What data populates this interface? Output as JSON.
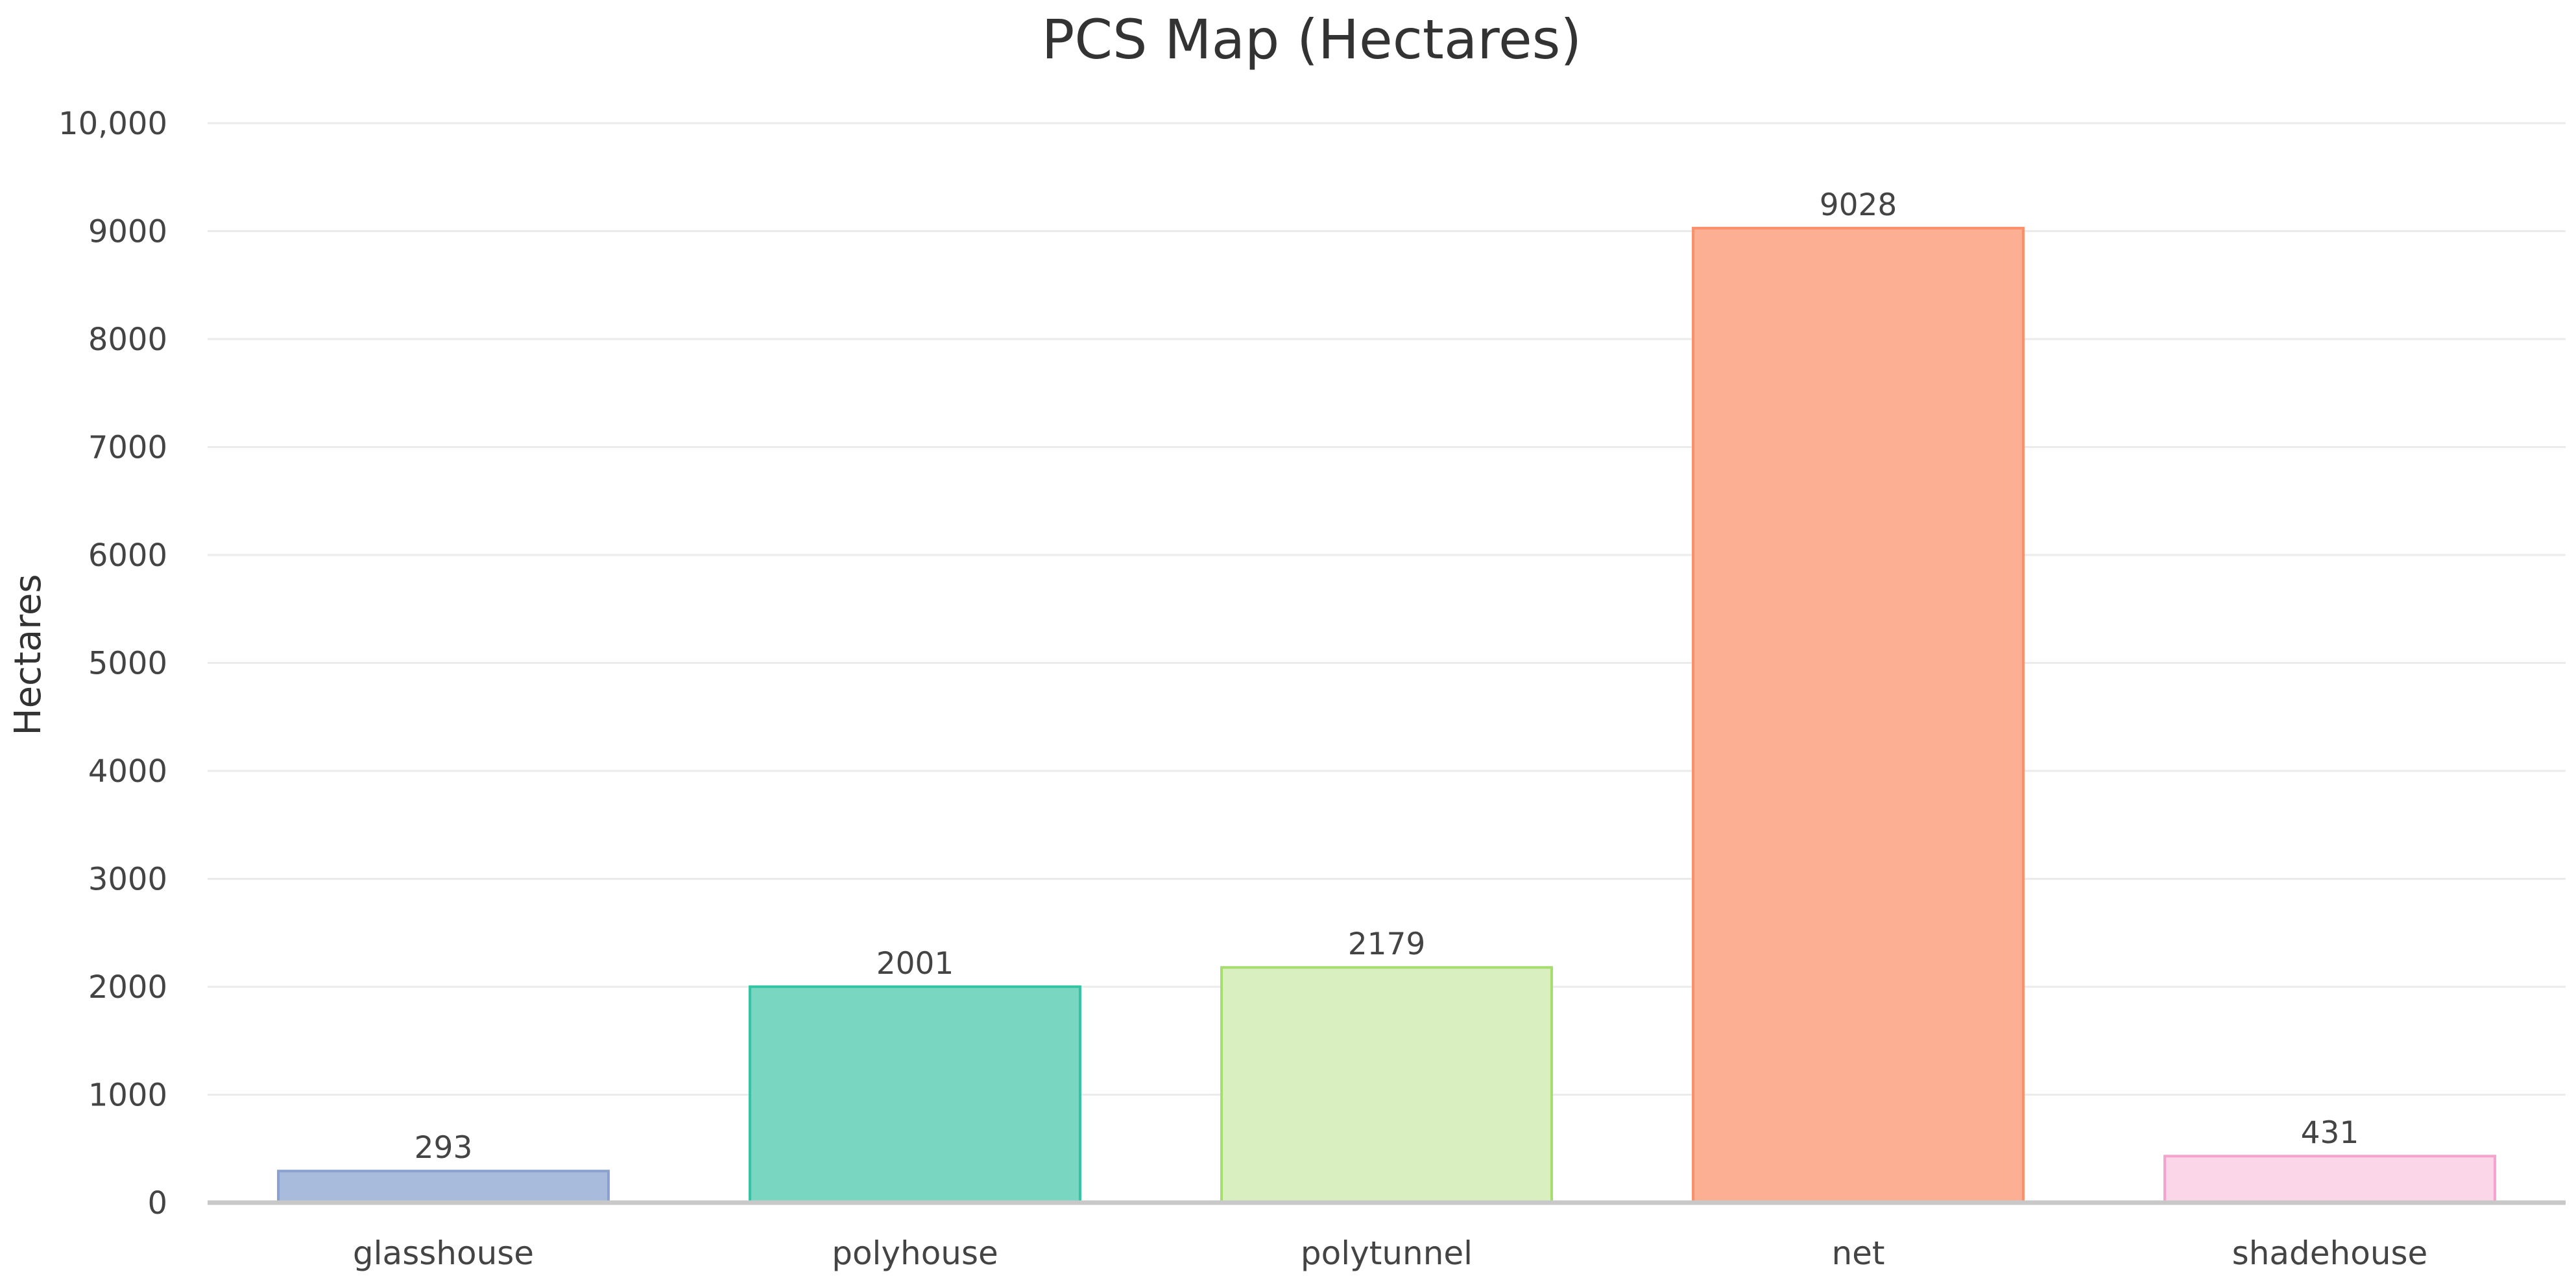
{
  "chart_data": {
    "type": "bar",
    "title": "PCS Map (Hectares)",
    "xlabel": "",
    "ylabel": "Hectares",
    "categories": [
      "glasshouse",
      "polyhouse",
      "polytunnel",
      "net",
      "shadehouse"
    ],
    "values": [
      293,
      2001,
      2179,
      9028,
      431
    ],
    "data_labels": [
      "293",
      "2001",
      "2179",
      "9028",
      "431"
    ],
    "ylim": [
      0,
      10000
    ],
    "yticks": [
      0,
      1000,
      2000,
      3000,
      4000,
      5000,
      6000,
      7000,
      8000,
      9000,
      10000
    ],
    "ytick_labels": [
      "0",
      "1000",
      "2000",
      "3000",
      "4000",
      "5000",
      "6000",
      "7000",
      "8000",
      "9000",
      "10,000"
    ],
    "grid": true,
    "legend": "none",
    "colors": {
      "fills": [
        "#a9bbdc",
        "#78d6c1",
        "#d9efbf",
        "#fcaf92",
        "#fbd6e8"
      ],
      "strokes": [
        "#8aa1cf",
        "#32c4a3",
        "#a6dd6f",
        "#fa8f6a",
        "#f5a3cc"
      ]
    }
  }
}
